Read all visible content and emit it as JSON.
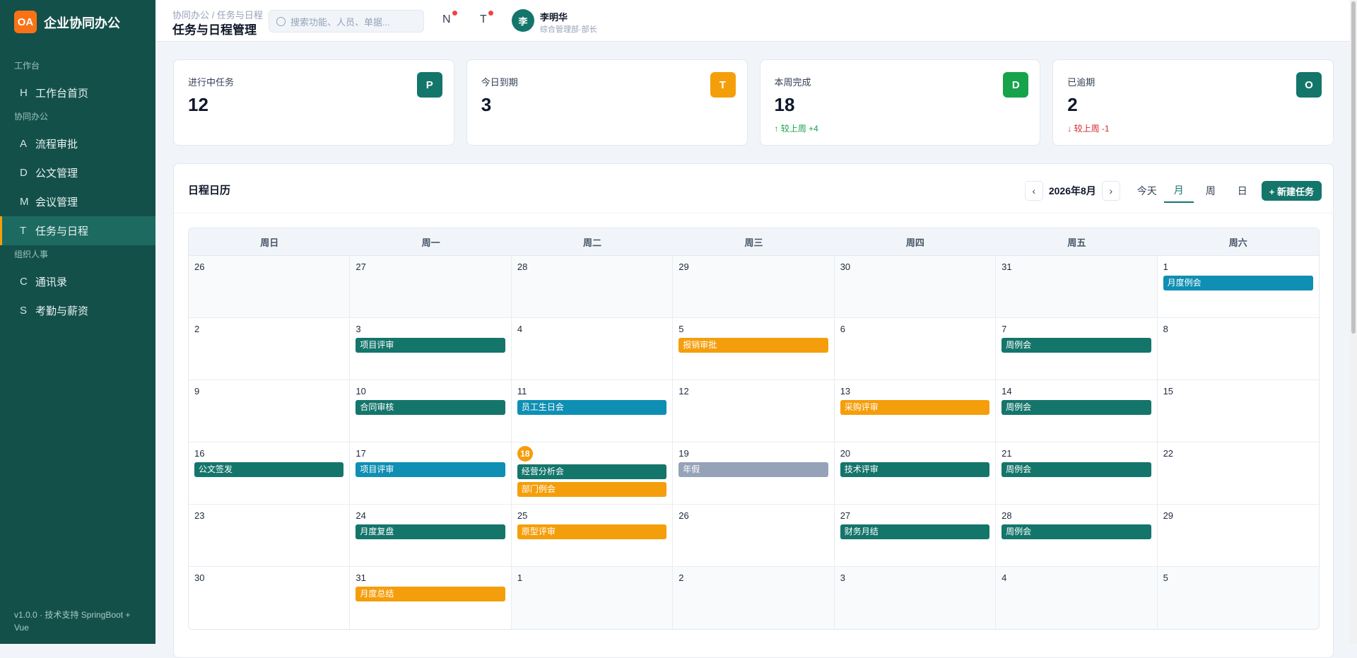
{
  "sidebar": {
    "logo": "OA",
    "brand": "企业协同办公",
    "groups": [
      {
        "title": "工作台",
        "items": [
          {
            "icon": "H",
            "label": "工作台首页"
          }
        ]
      },
      {
        "title": "协同办公",
        "items": [
          {
            "icon": "A",
            "label": "流程审批"
          },
          {
            "icon": "D",
            "label": "公文管理"
          },
          {
            "icon": "M",
            "label": "会议管理"
          },
          {
            "icon": "T",
            "label": "任务与日程",
            "active": true
          }
        ]
      },
      {
        "title": "组织人事",
        "items": [
          {
            "icon": "C",
            "label": "通讯录"
          },
          {
            "icon": "S",
            "label": "考勤与薪资"
          }
        ]
      }
    ],
    "footer": "v1.0.0 · 技术支持 SpringBoot + Vue"
  },
  "header": {
    "breadcrumb": "协同办公 / 任务与日程",
    "title": "任务与日程管理",
    "search_placeholder": "搜索功能、人员、单据...",
    "icons": [
      "N",
      "T"
    ],
    "user": {
      "avatar": "李",
      "name": "李明华",
      "role": "综合管理部·部长"
    }
  },
  "stats": [
    {
      "label": "进行中任务",
      "value": 12,
      "icon": "P",
      "color": "#14756b"
    },
    {
      "label": "今日到期",
      "value": 3,
      "icon": "T",
      "color": "#f59e0b"
    },
    {
      "label": "本周完成",
      "value": 18,
      "icon": "D",
      "color": "#16a34a",
      "trend": "↑ 较上周 +4",
      "trend_color": "#16a34a"
    },
    {
      "label": "已逾期",
      "value": 2,
      "icon": "O",
      "color": "#14756b",
      "trend": "↓ 较上周 -1",
      "trend_color": "#dc2626"
    }
  ],
  "calendar": {
    "title": "日程日历",
    "prev": "‹",
    "month": "2026年8月",
    "next": "›",
    "views": [
      "今天",
      "月",
      "周",
      "日"
    ],
    "active_view": 1,
    "new_button": "+ 新建任务",
    "weekdays": [
      "周日",
      "周一",
      "周二",
      "周三",
      "周四",
      "周五",
      "周六"
    ],
    "weeks": [
      [
        {
          "day": 26,
          "outside": true,
          "events": []
        },
        {
          "day": 27,
          "outside": true,
          "events": []
        },
        {
          "day": 28,
          "outside": true,
          "events": []
        },
        {
          "day": 29,
          "outside": true,
          "events": []
        },
        {
          "day": 30,
          "outside": true,
          "events": []
        },
        {
          "day": 31,
          "outside": true,
          "events": []
        },
        {
          "day": 1,
          "events": [
            {
              "label": "月度例会",
              "color": "#0e8fb3"
            }
          ]
        }
      ],
      [
        {
          "day": 2,
          "events": []
        },
        {
          "day": 3,
          "events": [
            {
              "label": "项目评审",
              "color": "#14756b"
            }
          ]
        },
        {
          "day": 4,
          "events": []
        },
        {
          "day": 5,
          "events": [
            {
              "label": "报销审批",
              "color": "#f59e0b"
            }
          ]
        },
        {
          "day": 6,
          "events": []
        },
        {
          "day": 7,
          "events": [
            {
              "label": "周例会",
              "color": "#14756b"
            }
          ]
        },
        {
          "day": 8,
          "events": []
        }
      ],
      [
        {
          "day": 9,
          "events": []
        },
        {
          "day": 10,
          "events": [
            {
              "label": "合同审核",
              "color": "#14756b"
            }
          ]
        },
        {
          "day": 11,
          "events": [
            {
              "label": "员工生日会",
              "color": "#0e8fb3"
            }
          ]
        },
        {
          "day": 12,
          "events": []
        },
        {
          "day": 13,
          "events": [
            {
              "label": "采购评审",
              "color": "#f59e0b"
            }
          ]
        },
        {
          "day": 14,
          "events": [
            {
              "label": "周例会",
              "color": "#14756b"
            }
          ]
        },
        {
          "day": 15,
          "events": []
        }
      ],
      [
        {
          "day": 16,
          "events": [
            {
              "label": "公文签发",
              "color": "#14756b"
            }
          ]
        },
        {
          "day": 17,
          "events": [
            {
              "label": "项目评审",
              "color": "#0e8fb3"
            }
          ]
        },
        {
          "day": 18,
          "today": true,
          "events": [
            {
              "label": "经营分析会",
              "color": "#14756b"
            },
            {
              "label": "部门例会",
              "color": "#f59e0b"
            }
          ]
        },
        {
          "day": 19,
          "events": [
            {
              "label": "年假",
              "color": "#94a3b8"
            }
          ]
        },
        {
          "day": 20,
          "events": [
            {
              "label": "技术评审",
              "color": "#14756b"
            }
          ]
        },
        {
          "day": 21,
          "events": [
            {
              "label": "周例会",
              "color": "#14756b"
            }
          ]
        },
        {
          "day": 22,
          "events": []
        }
      ],
      [
        {
          "day": 23,
          "events": []
        },
        {
          "day": 24,
          "events": [
            {
              "label": "月度复盘",
              "color": "#14756b"
            }
          ]
        },
        {
          "day": 25,
          "events": [
            {
              "label": "原型评审",
              "color": "#f59e0b"
            }
          ]
        },
        {
          "day": 26,
          "events": []
        },
        {
          "day": 27,
          "events": [
            {
              "label": "财务月结",
              "color": "#14756b"
            }
          ]
        },
        {
          "day": 28,
          "events": [
            {
              "label": "周例会",
              "color": "#14756b"
            }
          ]
        },
        {
          "day": 29,
          "events": []
        }
      ],
      [
        {
          "day": 30,
          "events": []
        },
        {
          "day": 31,
          "events": [
            {
              "label": "月度总结",
              "color": "#f59e0b"
            }
          ]
        },
        {
          "day": 1,
          "outside": true,
          "events": []
        },
        {
          "day": 2,
          "outside": true,
          "events": []
        },
        {
          "day": 3,
          "outside": true,
          "events": []
        },
        {
          "day": 4,
          "outside": true,
          "events": []
        },
        {
          "day": 5,
          "outside": true,
          "events": []
        }
      ]
    ]
  }
}
